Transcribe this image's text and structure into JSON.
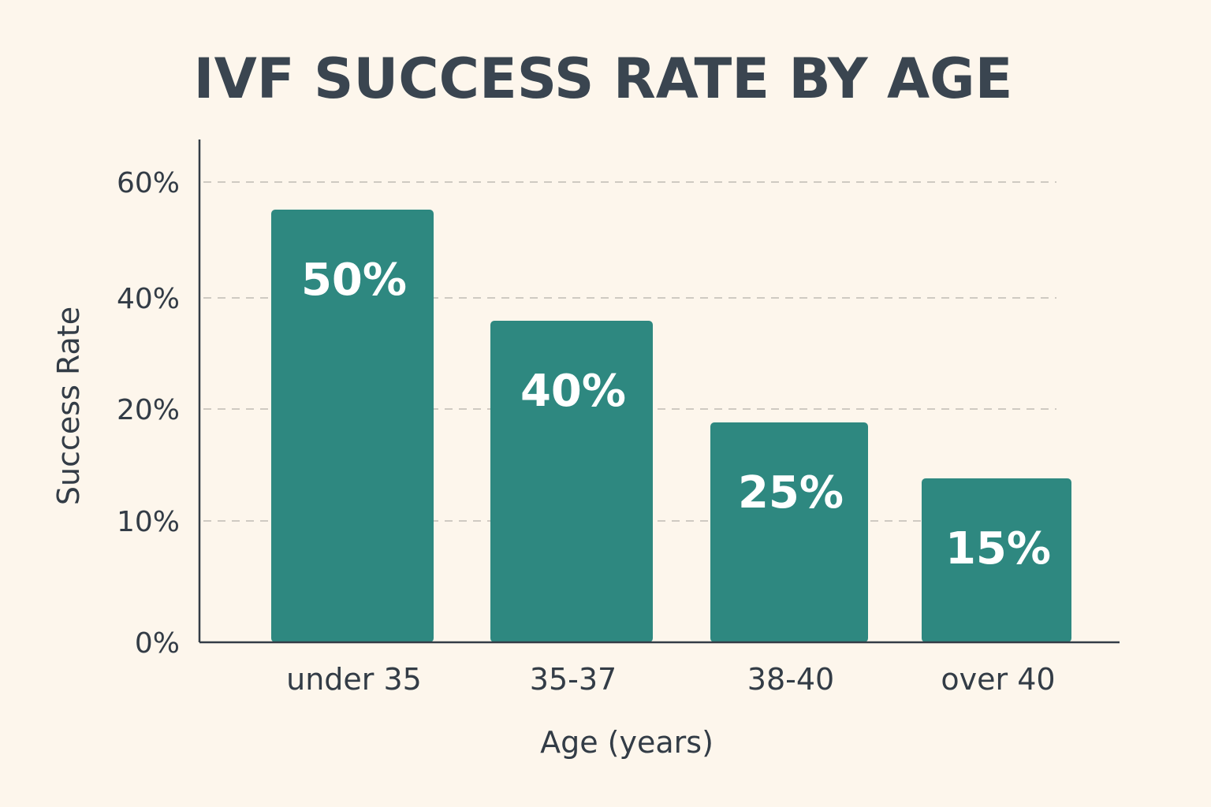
{
  "chart_data": {
    "type": "bar",
    "title": "IVF SUCCESS RATE BY AGE",
    "xlabel": "Age (years)",
    "ylabel": "Success Rate",
    "categories": [
      "under 35",
      "35-37",
      "38-40",
      "over 40"
    ],
    "values": [
      50,
      40,
      25,
      15
    ],
    "data_labels": [
      "50%",
      "40%",
      "25%",
      "15%"
    ],
    "y_ticks": [
      {
        "value": 0,
        "label": "0%"
      },
      {
        "value": 10,
        "label": "10%"
      },
      {
        "value": 20,
        "label": "20%"
      },
      {
        "value": 40,
        "label": "40%"
      },
      {
        "value": 60,
        "label": "60%"
      }
    ],
    "ylim": [
      0,
      60
    ],
    "grid": true,
    "legend": "none",
    "colors": {
      "bar": "#2e8880",
      "grid": "#cfcac2",
      "axis": "#333c46",
      "background": "#fdf6ec"
    }
  }
}
